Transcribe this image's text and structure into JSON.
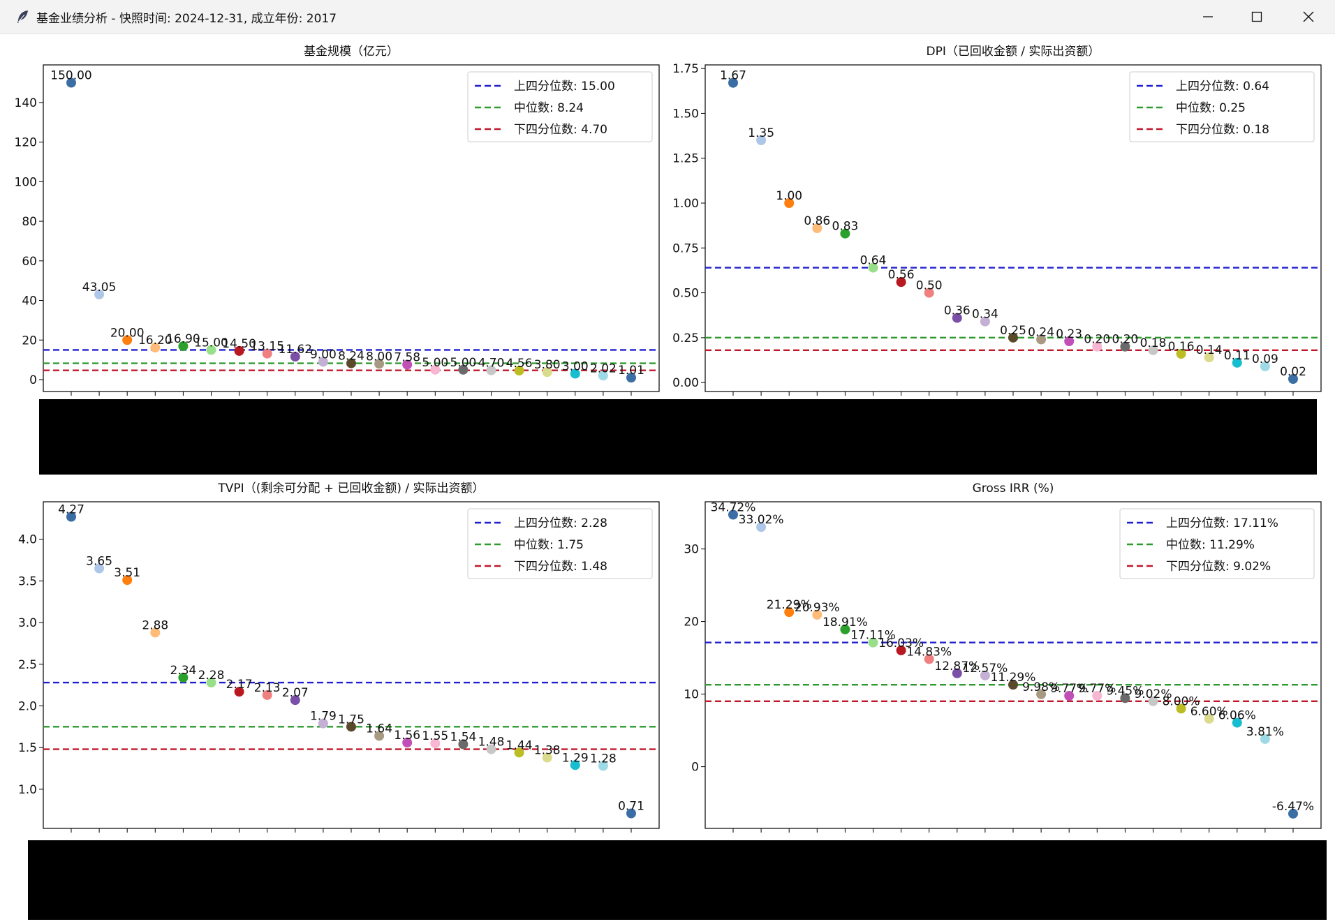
{
  "window": {
    "title": "基金业绩分析 - 快照时间: 2024-12-31, 成立年份: 2017",
    "icons": {
      "app": "feather-icon",
      "minimize": "minimize-icon",
      "maximize": "maximize-icon",
      "close": "close-icon"
    }
  },
  "palette": [
    "#3a6ea5",
    "#aec7e8",
    "#ff7f0e",
    "#ffbb78",
    "#2ca02c",
    "#98df8a",
    "#b8181f",
    "#f08080",
    "#7b4fa8",
    "#c5b0d5",
    "#5a4a2a",
    "#a89a82",
    "#c050b8",
    "#f7b6d2",
    "#6a6a6a",
    "#c7c7c7",
    "#bcbd22",
    "#dbdb8d",
    "#17becf",
    "#9edae5"
  ],
  "line_colors": {
    "upper": "#1f1fcf",
    "median": "#2e9a2e",
    "lower": "#c0182a"
  },
  "chart_data": [
    {
      "type": "scatter",
      "title": "基金规模（亿元）",
      "ylim": [
        -6,
        159
      ],
      "yticks": [
        0,
        20,
        40,
        60,
        80,
        100,
        120,
        140
      ],
      "ytick_labels": [
        "0",
        "20",
        "40",
        "60",
        "80",
        "100",
        "120",
        "140"
      ],
      "grid": false,
      "legend_position": "upper right",
      "values": [
        150,
        43.05,
        20,
        16.2,
        16.9,
        15,
        14.5,
        13.15,
        11.62,
        9,
        8.24,
        8,
        7.58,
        5,
        5,
        4.7,
        4.56,
        3.8,
        3,
        2.02,
        1.01
      ],
      "labels": [
        "150.00",
        "43.05",
        "20.00",
        "16.20",
        "16.90",
        "15.00",
        "14.50",
        "13.15",
        "11.62",
        "9.00",
        "8.24",
        "8.00",
        "7.58",
        "5.00",
        "5.00",
        "4.70",
        "4.56",
        "3.80",
        "3.00",
        "2.02",
        "1.01"
      ],
      "quartiles": [
        {
          "name": "上四分位数",
          "value": 15.0,
          "legend": "上四分位数: 15.00"
        },
        {
          "name": "中位数",
          "value": 8.24,
          "legend": "中位数: 8.24"
        },
        {
          "name": "下四分位数",
          "value": 4.7,
          "legend": "下四分位数: 4.70"
        }
      ]
    },
    {
      "type": "scatter",
      "title": "DPI（已回收金额 / 实际出资额）",
      "ylim": [
        -0.05,
        1.77
      ],
      "yticks": [
        0,
        0.25,
        0.5,
        0.75,
        1.0,
        1.25,
        1.5,
        1.75
      ],
      "ytick_labels": [
        "0.00",
        "0.25",
        "0.50",
        "0.75",
        "1.00",
        "1.25",
        "1.50",
        "1.75"
      ],
      "grid": false,
      "legend_position": "upper right",
      "values": [
        1.67,
        1.35,
        1.0,
        0.86,
        0.83,
        0.64,
        0.56,
        0.5,
        0.36,
        0.34,
        0.25,
        0.24,
        0.23,
        0.2,
        0.2,
        0.18,
        0.16,
        0.14,
        0.11,
        0.09,
        0.02
      ],
      "labels": [
        "1.67",
        "1.35",
        "1.00",
        "0.86",
        "0.83",
        "0.64",
        "0.56",
        "0.50",
        "0.36",
        "0.34",
        "0.25",
        "0.24",
        "0.23",
        "0.20",
        "0.20",
        "0.18",
        "0.16",
        "0.14",
        "0.11",
        "0.09",
        "0.02"
      ],
      "quartiles": [
        {
          "name": "上四分位数",
          "value": 0.64,
          "legend": "上四分位数: 0.64"
        },
        {
          "name": "中位数",
          "value": 0.25,
          "legend": "中位数: 0.25"
        },
        {
          "name": "下四分位数",
          "value": 0.18,
          "legend": "下四分位数: 0.18"
        }
      ]
    },
    {
      "type": "scatter",
      "title": "TVPI（(剩余可分配 + 已回收金额) / 实际出资额）",
      "ylim": [
        0.53,
        4.45
      ],
      "yticks": [
        1.0,
        1.5,
        2.0,
        2.5,
        3.0,
        3.5,
        4.0
      ],
      "ytick_labels": [
        "1.0",
        "1.5",
        "2.0",
        "2.5",
        "3.0",
        "3.5",
        "4.0"
      ],
      "grid": false,
      "legend_position": "upper right",
      "values": [
        4.27,
        3.65,
        3.51,
        2.88,
        2.34,
        2.28,
        2.17,
        2.13,
        2.07,
        1.79,
        1.75,
        1.64,
        1.56,
        1.55,
        1.54,
        1.48,
        1.44,
        1.38,
        1.29,
        1.28,
        0.71
      ],
      "labels": [
        "4.27",
        "3.65",
        "3.51",
        "2.88",
        "2.34",
        "2.28",
        "2.17",
        "2.13",
        "2.07",
        "1.79",
        "1.75",
        "1.64",
        "1.56",
        "1.55",
        "1.54",
        "1.48",
        "1.44",
        "1.38",
        "1.29",
        "1.28",
        "0.71"
      ],
      "quartiles": [
        {
          "name": "上四分位数",
          "value": 2.28,
          "legend": "上四分位数: 2.28"
        },
        {
          "name": "中位数",
          "value": 1.75,
          "legend": "中位数: 1.75"
        },
        {
          "name": "下四分位数",
          "value": 1.48,
          "legend": "下四分位数: 1.48"
        }
      ]
    },
    {
      "type": "scatter",
      "title": "Gross IRR (%)",
      "ylim": [
        -8.5,
        36.5
      ],
      "yticks": [
        0,
        10,
        20,
        30
      ],
      "ytick_labels": [
        "0",
        "10",
        "20",
        "30"
      ],
      "grid": false,
      "legend_position": "upper right",
      "values": [
        34.72,
        33.02,
        21.29,
        20.93,
        18.91,
        17.11,
        16.03,
        14.83,
        12.87,
        12.57,
        11.29,
        9.98,
        9.77,
        9.77,
        9.45,
        9.02,
        8.0,
        6.6,
        6.06,
        3.81,
        -6.47
      ],
      "labels": [
        "34.72%",
        "33.02%",
        "21.29%",
        "20.93%",
        "18.91%",
        "17.11%",
        "16.03%",
        "14.83%",
        "12.87%",
        "12.57%",
        "11.29%",
        "9.98%",
        "9.77%",
        "9.77%",
        "9.45%",
        "9.02%",
        "8.00%",
        "6.60%",
        "6.06%",
        "3.81%",
        "-6.47%"
      ],
      "quartiles": [
        {
          "name": "上四分位数",
          "value": 17.11,
          "legend": "上四分位数: 17.11%"
        },
        {
          "name": "中位数",
          "value": 11.29,
          "legend": "中位数: 11.29%"
        },
        {
          "name": "下四分位数",
          "value": 9.02,
          "legend": "下四分位数: 9.02%"
        }
      ]
    }
  ]
}
